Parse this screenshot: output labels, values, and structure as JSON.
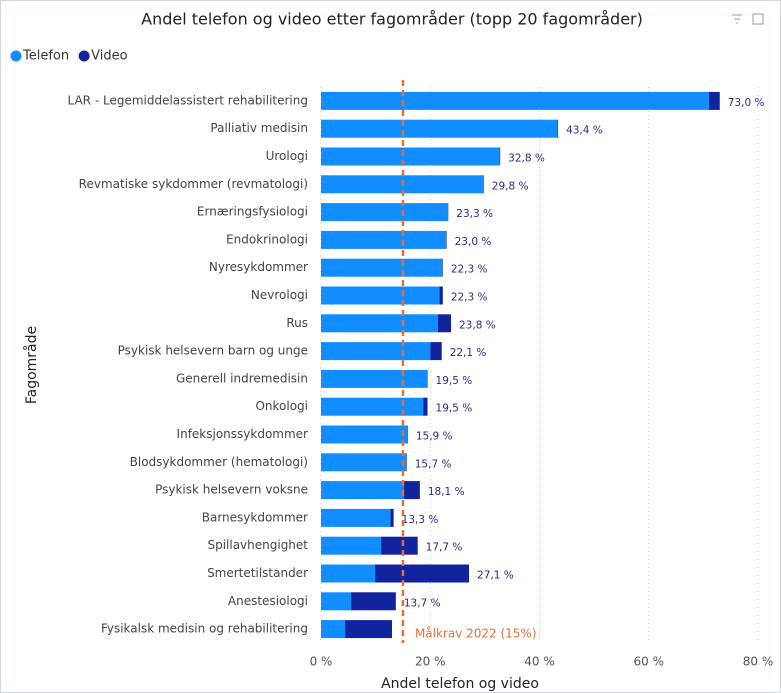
{
  "chart_data": {
    "type": "stacked_hbar",
    "title": "Andel telefon og video etter fagområder (topp 20 fagområder)",
    "x_label": "Andel telefon og video",
    "y_label": "Fagområde",
    "categories": [
      "LAR - Legemiddelassistert rehabilitering",
      "Palliativ medisin",
      "Urologi",
      "Revmatiske sykdommer (revmatologi)",
      "Ernæringsfysiologi",
      "Endokrinologi",
      "Nyresykdommer",
      "Nevrologi",
      "Rus",
      "Psykisk helsevern barn og unge",
      "Generell indremedisin",
      "Onkologi",
      "Infeksjonssykdommer",
      "Blodsykdommer (hematologi)",
      "Psykisk helsevern voksne",
      "Barnesykdommer",
      "Spillavhengighet",
      "Smertetilstander",
      "Anestesiologi",
      "Fysikalsk medisin og rehabilitering"
    ],
    "series": [
      {
        "name": "Telefon",
        "color": "#118dff",
        "values": [
          71.0,
          43.3,
          32.7,
          29.7,
          23.2,
          22.9,
          22.2,
          21.7,
          21.4,
          20.0,
          19.4,
          18.7,
          15.8,
          15.6,
          15.2,
          12.7,
          11.0,
          9.9,
          5.5,
          4.4
        ]
      },
      {
        "name": "Video",
        "color": "#12239e",
        "values": [
          2.0,
          0.1,
          0.1,
          0.1,
          0.1,
          0.1,
          0.1,
          0.6,
          2.4,
          2.1,
          0.1,
          0.8,
          0.1,
          0.1,
          2.9,
          0.6,
          6.7,
          17.2,
          8.2,
          8.6
        ]
      }
    ],
    "totals": [
      73.0,
      43.4,
      32.8,
      29.8,
      23.3,
      23.0,
      22.3,
      22.3,
      23.8,
      22.1,
      19.5,
      19.5,
      15.9,
      15.7,
      18.1,
      13.3,
      17.7,
      27.1,
      13.7,
      null
    ],
    "total_labels": [
      "73,0 %",
      "43,4 %",
      "32,8 %",
      "29,8 %",
      "23,3 %",
      "23,0 %",
      "22,3 %",
      "22,3 %",
      "23,8 %",
      "22,1 %",
      "19,5 %",
      "19,5 %",
      "15,9 %",
      "15,7 %",
      "18,1 %",
      "13,3 %",
      "17,7 %",
      "27,1 %",
      "13,7 %",
      null
    ],
    "xlim": [
      0,
      80
    ],
    "xticks": [
      {
        "value": 0,
        "label": "0 %"
      },
      {
        "value": 20,
        "label": "20 %"
      },
      {
        "value": 40,
        "label": "40 %"
      },
      {
        "value": 60,
        "label": "60 %"
      },
      {
        "value": 80,
        "label": "80 %"
      }
    ],
    "grid": true,
    "legend": "top-left",
    "target": {
      "value": 15,
      "label": "Målkrav 2022 (15%)",
      "color": "#e3703a"
    }
  }
}
